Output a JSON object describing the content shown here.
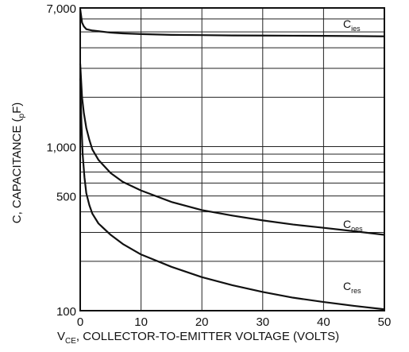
{
  "chart_data": {
    "type": "line",
    "xlabel": "V",
    "xlabel_sub": "CE",
    "xlabel_rest": ", COLLECTOR-TO-EMITTER VOLTAGE (VOLTS)",
    "ylabel_pre": "C, CAPACITANCE  (",
    "ylabel_sub": "p",
    "ylabel_post": "F)",
    "x_ticks": [
      0,
      10,
      20,
      30,
      40,
      50
    ],
    "x_tick_labels": [
      "0",
      "10",
      "20",
      "30",
      "40",
      "50"
    ],
    "xlim": [
      0,
      50
    ],
    "y_scale": "log",
    "ylim": [
      100,
      7000
    ],
    "y_ticks": [
      100,
      500,
      1000,
      7000
    ],
    "y_tick_labels": [
      "100",
      "500",
      "1,000",
      "7,000"
    ],
    "grid": true,
    "series": [
      {
        "name": "C",
        "name_sub": "ies",
        "x": [
          0,
          0.3,
          0.6,
          1,
          2,
          3,
          5,
          7,
          10,
          15,
          20,
          25,
          30,
          35,
          40,
          45,
          50
        ],
        "y": [
          6900,
          5700,
          5400,
          5200,
          5100,
          5050,
          4950,
          4900,
          4850,
          4800,
          4780,
          4760,
          4750,
          4740,
          4730,
          4720,
          4700
        ]
      },
      {
        "name": "C",
        "name_sub": "oes",
        "x": [
          0,
          0.3,
          0.6,
          1,
          1.5,
          2,
          3,
          5,
          7,
          10,
          15,
          20,
          25,
          30,
          35,
          40,
          45,
          50
        ],
        "y": [
          3200,
          2000,
          1600,
          1300,
          1100,
          960,
          830,
          690,
          610,
          540,
          460,
          410,
          380,
          355,
          335,
          320,
          305,
          290
        ]
      },
      {
        "name": "C",
        "name_sub": "res",
        "x": [
          0,
          0.2,
          0.4,
          0.7,
          1,
          1.5,
          2,
          3,
          5,
          7,
          10,
          15,
          20,
          25,
          30,
          35,
          40,
          45,
          50
        ],
        "y": [
          2600,
          1400,
          900,
          650,
          520,
          440,
          390,
          340,
          290,
          255,
          220,
          185,
          160,
          143,
          130,
          120,
          113,
          107,
          102
        ]
      }
    ]
  }
}
